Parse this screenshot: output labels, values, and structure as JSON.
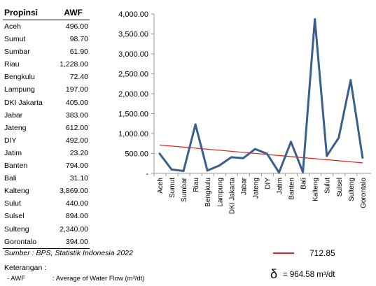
{
  "table": {
    "headers": [
      "Propinsi",
      "AWF"
    ],
    "rows": [
      [
        "Aceh",
        "496.00"
      ],
      [
        "Sumut",
        "98.70"
      ],
      [
        "Sumbar",
        "61.90"
      ],
      [
        "Riau",
        "1,228.00"
      ],
      [
        "Bengkulu",
        "72.40"
      ],
      [
        "Lampung",
        "197.00"
      ],
      [
        "DKI Jakarta",
        "405.00"
      ],
      [
        "Jabar",
        "383.00"
      ],
      [
        "Jateng",
        "612.00"
      ],
      [
        "DIY",
        "492.00"
      ],
      [
        "Jatim",
        "23.20"
      ],
      [
        "Banten",
        "794.00"
      ],
      [
        "Bali",
        "31.10"
      ],
      [
        "Kalteng",
        "3,869.00"
      ],
      [
        "Sulut",
        "440.00"
      ],
      [
        "Sulsel",
        "894.00"
      ],
      [
        "Sulteng",
        "2,340.00"
      ],
      [
        "Gorontalo",
        "394.00"
      ]
    ]
  },
  "chart_data": {
    "type": "line",
    "categories": [
      "Aceh",
      "Sumut",
      "Sumbar",
      "Riau",
      "Bengkulu",
      "Lampung",
      "DKI Jakarta",
      "Jabar",
      "Jateng",
      "DIY",
      "Jatim",
      "Banten",
      "Bali",
      "Kalteng",
      "Sulut",
      "Sulsel",
      "Sulteng",
      "Gorontalo"
    ],
    "series": [
      {
        "values": [
          496,
          98.7,
          61.9,
          1228,
          72.4,
          197,
          405,
          383,
          612,
          492,
          23.2,
          794,
          31.1,
          3869,
          440,
          894,
          2340,
          394
        ],
        "color": "#3a5f8a"
      }
    ],
    "reference_line": {
      "label": "712.85",
      "start": 712.85,
      "end": 265,
      "color": "#e0201b"
    },
    "yticks": [
      "4,000.00",
      "3,500.00",
      "3,000.00",
      "2,500.00",
      "2,000.00",
      "1,500.00",
      "1,000.00",
      "500.00",
      "-"
    ],
    "ylim": [
      0,
      4000
    ],
    "grid": false
  },
  "footer": {
    "source": "Sumber : BPS, Statistik Indonesia 2022",
    "keterangan": "Keterangan :",
    "awf_item": "-  AWF",
    "awf_desc": ": Average of Water Flow (m³/dt)",
    "legend_value": "712.85",
    "delta_symbol": "δ",
    "delta_text": "= 964.58 m³/dt"
  }
}
